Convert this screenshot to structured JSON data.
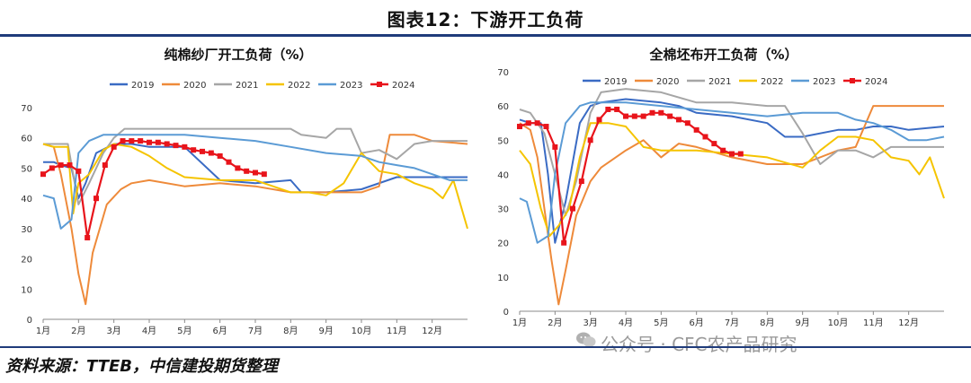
{
  "figure": {
    "title": "图表12：下游开工负荷",
    "source": "资料来源：TTEB，中信建投期货整理",
    "watermark": "公众号 · CFC农产品研究"
  },
  "colors": {
    "2019": "#3a6bc4",
    "2020": "#ee8a3a",
    "2021": "#a6a6a6",
    "2022": "#f5c400",
    "2023": "#5b9bd5",
    "2024": "#e8141b"
  },
  "chart_data": [
    {
      "type": "line",
      "title": "纯棉纱厂开工负荷（%）",
      "ylim": [
        0,
        70
      ],
      "yticks": [
        0,
        10,
        20,
        30,
        40,
        50,
        60,
        70
      ],
      "xlim": [
        1,
        13
      ],
      "xticks": [
        "1月",
        "2月",
        "3月",
        "4月",
        "5月",
        "6月",
        "7月",
        "8月",
        "9月",
        "10月",
        "11月",
        "12月"
      ],
      "legend_position": "top",
      "series": [
        {
          "name": "2019",
          "x": [
            1,
            1.3,
            1.5,
            1.8,
            2.0,
            2.2,
            2.5,
            3.0,
            3.5,
            4,
            5,
            6,
            7,
            8,
            8.3,
            9,
            10,
            11,
            12,
            13
          ],
          "y": [
            52,
            52,
            51,
            50,
            40,
            45,
            55,
            58,
            58,
            57,
            57,
            46,
            45,
            46,
            42,
            42,
            43,
            47,
            47,
            47
          ]
        },
        {
          "name": "2020",
          "x": [
            1,
            1.3,
            1.5,
            1.8,
            2.0,
            2.2,
            2.4,
            2.8,
            3.2,
            3.5,
            4,
            5,
            6,
            7,
            8,
            9,
            10,
            10.5,
            10.8,
            11.5,
            12,
            13
          ],
          "y": [
            58,
            57,
            48,
            30,
            15,
            5,
            22,
            38,
            43,
            45,
            46,
            44,
            45,
            44,
            42,
            42,
            42,
            44,
            61,
            61,
            59,
            58
          ]
        },
        {
          "name": "2021",
          "x": [
            1,
            1.3,
            1.7,
            2.0,
            2.3,
            2.7,
            3.0,
            3.3,
            4,
            5,
            6,
            7,
            8,
            8.3,
            9,
            9.3,
            9.7,
            10,
            10.5,
            11,
            11.5,
            12,
            13
          ],
          "y": [
            58,
            58,
            58,
            38,
            45,
            55,
            60,
            63,
            63,
            63,
            63,
            63,
            63,
            61,
            60,
            63,
            63,
            55,
            56,
            53,
            58,
            59,
            59
          ]
        },
        {
          "name": "2022",
          "x": [
            1,
            1.3,
            1.7,
            1.85,
            2.0,
            2.3,
            2.7,
            3.0,
            3.5,
            4,
            4.5,
            5,
            6,
            7,
            8,
            8.5,
            9,
            9.5,
            10,
            10.5,
            11,
            11.5,
            12,
            12.3,
            12.6,
            13
          ],
          "y": [
            58,
            57,
            57,
            35,
            45,
            48,
            56,
            58,
            57,
            54,
            50,
            47,
            46,
            46,
            42,
            42,
            41,
            45,
            55,
            49,
            48,
            45,
            43,
            40,
            46,
            30
          ]
        },
        {
          "name": "2023",
          "x": [
            1,
            1.3,
            1.5,
            1.8,
            2.0,
            2.3,
            2.7,
            3.0,
            3.3,
            4,
            5,
            6,
            7,
            8,
            9,
            10,
            10.5,
            11,
            11.5,
            12,
            12.5,
            13
          ],
          "y": [
            41,
            40,
            30,
            33,
            55,
            59,
            61,
            61,
            61,
            61,
            61,
            60,
            59,
            57,
            55,
            54,
            52,
            51,
            50,
            48,
            46,
            46
          ]
        },
        {
          "name": "2024",
          "x": [
            1,
            1.25,
            1.5,
            1.75,
            2.0,
            2.25,
            2.5,
            2.75,
            3.0,
            3.25,
            3.5,
            3.75,
            4.0,
            4.25,
            4.5,
            4.75,
            5.0,
            5.25,
            5.5,
            5.75,
            6.0,
            6.25,
            6.5,
            6.75,
            7.0,
            7.25
          ],
          "y": [
            48,
            50,
            51,
            51,
            49,
            27,
            40,
            51,
            57,
            59,
            59,
            59,
            58.5,
            58.5,
            58,
            57.5,
            57,
            56,
            55.5,
            55,
            54,
            52,
            50,
            49,
            48.5,
            48
          ]
        }
      ]
    },
    {
      "type": "line",
      "title": "全棉坯布开工负荷（%）",
      "ylim": [
        0,
        70
      ],
      "yticks": [
        0,
        10,
        20,
        30,
        40,
        50,
        60,
        70
      ],
      "xlim": [
        1,
        13
      ],
      "xticks": [
        "1月",
        "2月",
        "3月",
        "4月",
        "5月",
        "6月",
        "7月",
        "8月",
        "9月",
        "10月",
        "11月",
        "12月"
      ],
      "legend_position": "top",
      "series": [
        {
          "name": "2019",
          "x": [
            1,
            1.3,
            1.6,
            1.8,
            2.0,
            2.3,
            2.7,
            3.0,
            3.3,
            4,
            5,
            5.5,
            6,
            7,
            8,
            8.5,
            9,
            10,
            10.5,
            11,
            11.5,
            12,
            13
          ],
          "y": [
            56,
            55,
            55,
            40,
            20,
            32,
            55,
            60,
            61,
            62,
            61,
            60,
            58,
            57,
            55,
            51,
            51,
            53,
            53,
            54,
            54,
            53,
            54
          ]
        },
        {
          "name": "2020",
          "x": [
            1,
            1.3,
            1.5,
            1.7,
            1.9,
            2.1,
            2.3,
            2.6,
            3.0,
            3.3,
            4,
            4.5,
            5,
            5.5,
            6,
            7,
            8,
            9,
            10,
            10.5,
            11,
            12,
            13
          ],
          "y": [
            55,
            53,
            45,
            30,
            15,
            2,
            12,
            28,
            38,
            42,
            47,
            50,
            45,
            49,
            48,
            45,
            43,
            43,
            47,
            48,
            60,
            60,
            60
          ]
        },
        {
          "name": "2021",
          "x": [
            1,
            1.3,
            1.7,
            2.0,
            2.3,
            2.6,
            3.0,
            3.3,
            4,
            5,
            6,
            7,
            8,
            8.5,
            9,
            9.5,
            10,
            10.5,
            11,
            11.5,
            12,
            13
          ],
          "y": [
            59,
            58,
            52,
            40,
            28,
            38,
            58,
            64,
            65,
            64,
            61,
            61,
            60,
            60,
            52,
            43,
            47,
            47,
            45,
            48,
            48,
            48
          ]
        },
        {
          "name": "2022",
          "x": [
            1,
            1.3,
            1.6,
            1.85,
            2.1,
            2.4,
            2.7,
            3.0,
            3.5,
            4,
            4.5,
            5,
            6,
            7,
            8,
            9,
            9.5,
            10,
            10.5,
            11,
            11.5,
            12,
            12.3,
            12.6,
            13
          ],
          "y": [
            47,
            43,
            30,
            22,
            25,
            30,
            45,
            55,
            55,
            54,
            48,
            47,
            47,
            46,
            45,
            42,
            47,
            51,
            51,
            50,
            45,
            44,
            40,
            45,
            33
          ]
        },
        {
          "name": "2023",
          "x": [
            1,
            1.2,
            1.5,
            1.8,
            2.0,
            2.3,
            2.7,
            3.0,
            3.3,
            4,
            5,
            6,
            7,
            8,
            9,
            9.5,
            10,
            10.5,
            11,
            11.5,
            12,
            12.5,
            13
          ],
          "y": [
            33,
            32,
            20,
            22,
            40,
            55,
            60,
            61,
            61,
            61,
            60,
            59,
            58,
            57,
            58,
            58,
            58,
            56,
            55,
            53,
            50,
            50,
            51
          ]
        },
        {
          "name": "2024",
          "x": [
            1,
            1.25,
            1.5,
            1.75,
            2.0,
            2.25,
            2.5,
            2.75,
            3.0,
            3.25,
            3.5,
            3.75,
            4.0,
            4.25,
            4.5,
            4.75,
            5.0,
            5.25,
            5.5,
            5.75,
            6.0,
            6.25,
            6.5,
            6.75,
            7.0,
            7.25
          ],
          "y": [
            54,
            55,
            55,
            54,
            48,
            20,
            30,
            38,
            50,
            56,
            59,
            59,
            57,
            57,
            57,
            58,
            58,
            57,
            56,
            55,
            53,
            51,
            49,
            47,
            46,
            46
          ]
        }
      ]
    }
  ]
}
